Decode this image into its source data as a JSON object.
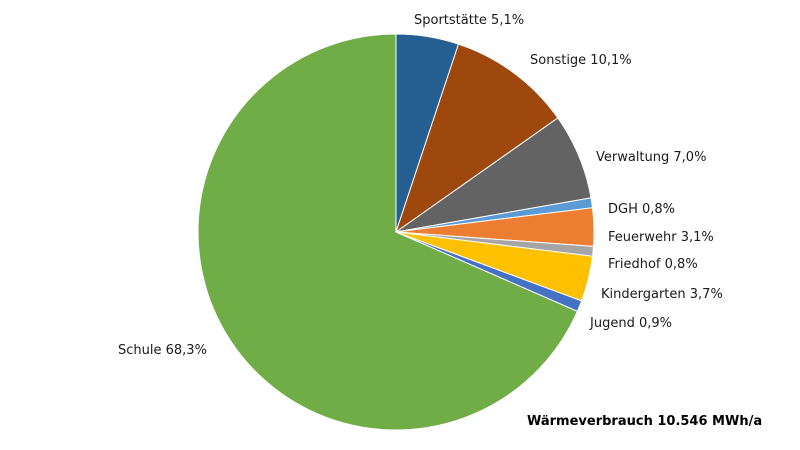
{
  "chart_data": {
    "type": "pie",
    "title": "",
    "note": "Wärmeverbrauch 10.546 MWh/a",
    "slices": [
      {
        "name": "Sportstätte",
        "value": 5.1,
        "label": "Sportstätte 5,1%",
        "color": "#255e91"
      },
      {
        "name": "Sonstige",
        "value": 10.1,
        "label": "Sonstige 10,1%",
        "color": "#9e480e"
      },
      {
        "name": "Verwaltung",
        "value": 7.0,
        "label": "Verwaltung 7,0%",
        "color": "#636363"
      },
      {
        "name": "DGH",
        "value": 0.8,
        "label": "DGH 0,8%",
        "color": "#5b9bd5"
      },
      {
        "name": "Feuerwehr",
        "value": 3.1,
        "label": "Feuerwehr 3,1%",
        "color": "#ed7d31"
      },
      {
        "name": "Friedhof",
        "value": 0.8,
        "label": "Friedhof 0,8%",
        "color": "#a5a5a5"
      },
      {
        "name": "Kindergarten",
        "value": 3.7,
        "label": "Kindergarten 3,7%",
        "color": "#ffc000"
      },
      {
        "name": "Jugend",
        "value": 0.9,
        "label": "Jugend 0,9%",
        "color": "#4472c4"
      },
      {
        "name": "Schule",
        "value": 68.3,
        "label": "Schule 68,3%",
        "color": "#70ad47"
      }
    ]
  }
}
